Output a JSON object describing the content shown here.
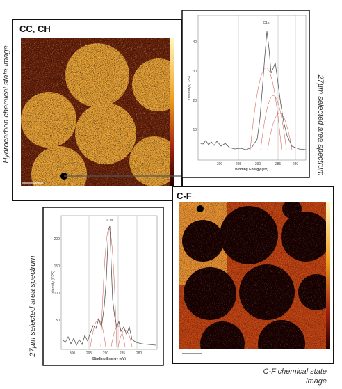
{
  "images": [
    {
      "label": "CC, CH",
      "caption": "Hydrocarbon chemical state image"
    },
    {
      "label": "C-F",
      "caption": [
        "C-F chemical state",
        "image"
      ]
    }
  ],
  "spectra": [
    {
      "title": "C1s",
      "y_label": "Intensity (CPS)",
      "x_label": "Binding Energy (eV)",
      "xticks": [
        "300",
        "295",
        "290",
        "285",
        "280"
      ],
      "yticks": [
        "40",
        "30",
        "20",
        "10"
      ],
      "caption": "27µm selected area spectrum"
    },
    {
      "title": "C1s",
      "y_label": "Intensity (CPS)",
      "x_label": "Binding Energy (eV)",
      "xticks": [
        "300",
        "295",
        "290",
        "285",
        "280"
      ],
      "yticks": [
        "200",
        "150",
        "100",
        "50"
      ],
      "caption": "27µm selected area spectrum"
    }
  ]
}
